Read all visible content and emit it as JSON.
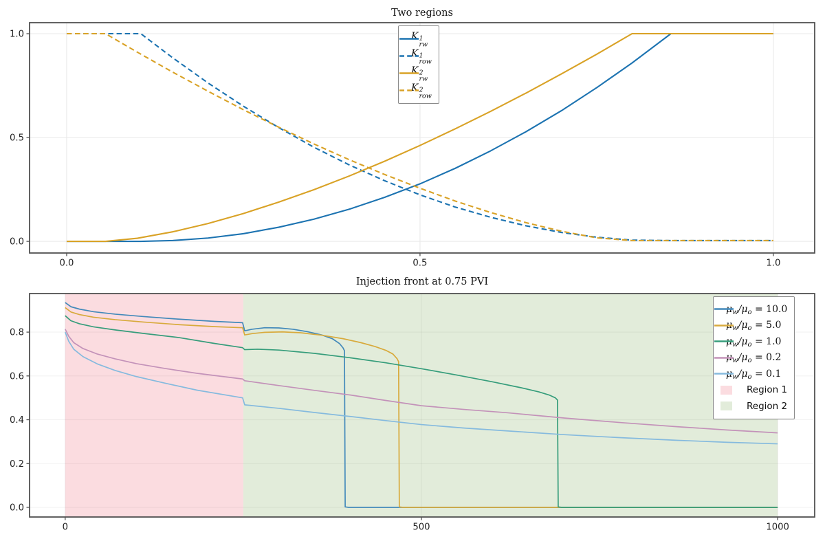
{
  "figure": {
    "background": "#ffffff"
  },
  "style": {
    "spine_color": "#515151",
    "tick_color": "#515151",
    "tick_label_color": "#222222",
    "title_color": "#151515",
    "grid_color_plain": "#e9e9e9",
    "grid_color_over_span": "rgba(0,0,0,0.05)",
    "legend_border": "#8a8a8a",
    "legend_bg": "#ffffff"
  },
  "chart_data": [
    {
      "type": "line",
      "title": "Two regions",
      "xlabel": "",
      "ylabel": "",
      "xlim": [
        -0.0525,
        1.0585
      ],
      "ylim": [
        -0.056,
        1.053
      ],
      "xticks": [
        0,
        0.5,
        1
      ],
      "xtick_labels": [
        "0.0",
        "0.5",
        "1.0"
      ],
      "yticks": [
        0,
        0.5,
        1
      ],
      "ytick_labels": [
        "0.0",
        "0.5",
        "1.0"
      ],
      "grid": true,
      "legend_position": "upper center",
      "series": [
        {
          "name": "Krw1",
          "label_text": "K_rw^1",
          "label_parts": [
            {
              "t": "K"
            },
            {
              "stack": [
                "1",
                "rw"
              ]
            }
          ],
          "color": "#1c73b1",
          "dash": "solid",
          "x": [
            0,
            0.105,
            0.15,
            0.2,
            0.25,
            0.3,
            0.35,
            0.4,
            0.45,
            0.5,
            0.55,
            0.6,
            0.65,
            0.7,
            0.75,
            0.8,
            0.855,
            1.0
          ],
          "y": [
            0,
            0,
            0.004,
            0.016,
            0.037,
            0.068,
            0.107,
            0.155,
            0.212,
            0.277,
            0.352,
            0.436,
            0.528,
            0.629,
            0.74,
            0.859,
            1,
            1
          ]
        },
        {
          "name": "Krow1",
          "label_text": "K_row^1",
          "label_parts": [
            {
              "t": "K"
            },
            {
              "stack": [
                "1",
                "row"
              ]
            }
          ],
          "color": "#1c73b1",
          "dash": "dashed",
          "x": [
            0,
            0.105,
            0.15,
            0.2,
            0.25,
            0.3,
            0.35,
            0.4,
            0.45,
            0.5,
            0.55,
            0.6,
            0.65,
            0.7,
            0.75,
            0.8,
            0.855,
            1.0
          ],
          "y": [
            1,
            1,
            0.884,
            0.763,
            0.651,
            0.548,
            0.453,
            0.368,
            0.292,
            0.224,
            0.165,
            0.116,
            0.075,
            0.043,
            0.02,
            0.006,
            0.004,
            0.004
          ]
        },
        {
          "name": "Krw2",
          "label_text": "K_rw^2",
          "label_parts": [
            {
              "t": "K"
            },
            {
              "stack": [
                "2",
                "rw"
              ]
            }
          ],
          "color": "#d9a226",
          "dash": "solid",
          "x": [
            0,
            0.055,
            0.1,
            0.15,
            0.2,
            0.25,
            0.3,
            0.35,
            0.4,
            0.45,
            0.5,
            0.55,
            0.6,
            0.65,
            0.7,
            0.75,
            0.8,
            1.0
          ],
          "y": [
            0,
            0,
            0.015,
            0.046,
            0.086,
            0.134,
            0.189,
            0.249,
            0.315,
            0.386,
            0.462,
            0.542,
            0.626,
            0.714,
            0.806,
            0.901,
            1,
            1
          ]
        },
        {
          "name": "Krow2",
          "label_text": "K_row^2",
          "label_parts": [
            {
              "t": "K"
            },
            {
              "stack": [
                "2",
                "row"
              ]
            }
          ],
          "color": "#d9a226",
          "dash": "dashed",
          "x": [
            0,
            0.055,
            0.1,
            0.15,
            0.2,
            0.25,
            0.3,
            0.35,
            0.4,
            0.45,
            0.5,
            0.55,
            0.6,
            0.65,
            0.7,
            0.75,
            0.8,
            1.0
          ],
          "y": [
            1,
            1,
            0.911,
            0.815,
            0.723,
            0.634,
            0.55,
            0.469,
            0.393,
            0.322,
            0.256,
            0.194,
            0.139,
            0.09,
            0.049,
            0.017,
            0.004,
            0.004
          ]
        }
      ]
    },
    {
      "type": "line",
      "title": "Injection front at 0.75 PVI",
      "xlabel": "",
      "ylabel": "",
      "xlim": [
        -50,
        1052
      ],
      "ylim": [
        -0.044,
        0.976
      ],
      "xticks": [
        0,
        500,
        1000
      ],
      "xtick_labels": [
        "0",
        "500",
        "1000"
      ],
      "yticks": [
        0,
        0.2,
        0.4,
        0.6,
        0.8
      ],
      "ytick_labels": [
        "0.0",
        "0.2",
        "0.4",
        "0.6",
        "0.8"
      ],
      "grid": true,
      "legend_position": "upper right",
      "regions": [
        {
          "label": "Region 1",
          "x0": 0,
          "x1": 250,
          "color": "#fbdce0"
        },
        {
          "label": "Region 2",
          "x0": 250,
          "x1": 1000,
          "color": "#e2ecda"
        }
      ],
      "series": [
        {
          "name": "mu10",
          "label_text": "mu_w/mu_o = 10.0",
          "label_parts": [
            {
              "t": "μ"
            },
            {
              "t": "w",
              "pos": "sub"
            },
            {
              "t": "/μ"
            },
            {
              "t": "o",
              "pos": "sub"
            },
            {
              "t": " = 10.0",
              "pos": "up"
            }
          ],
          "color": "#4289ba",
          "dash": "solid",
          "x": [
            0,
            8,
            20,
            40,
            70,
            110,
            160,
            210,
            249,
            252,
            262,
            280,
            300,
            320,
            340,
            360,
            375,
            385,
            390,
            392,
            393,
            398,
            1000
          ],
          "y": [
            0.935,
            0.916,
            0.905,
            0.893,
            0.882,
            0.871,
            0.859,
            0.849,
            0.843,
            0.806,
            0.813,
            0.82,
            0.819,
            0.813,
            0.802,
            0.787,
            0.77,
            0.748,
            0.728,
            0.715,
            0.002,
            0,
            0
          ]
        },
        {
          "name": "mu5",
          "label_text": "mu_w/mu_o = 5.0",
          "label_parts": [
            {
              "t": "μ"
            },
            {
              "t": "w",
              "pos": "sub"
            },
            {
              "t": "/μ"
            },
            {
              "t": "o",
              "pos": "sub"
            },
            {
              "t": " = 5.0",
              "pos": "up"
            }
          ],
          "color": "#d8aa3c",
          "dash": "solid",
          "x": [
            0,
            8,
            20,
            40,
            70,
            110,
            160,
            210,
            249,
            252,
            262,
            280,
            305,
            330,
            360,
            390,
            415,
            435,
            450,
            460,
            466,
            468,
            469,
            474,
            1000
          ],
          "y": [
            0.912,
            0.892,
            0.88,
            0.868,
            0.857,
            0.846,
            0.834,
            0.825,
            0.82,
            0.787,
            0.793,
            0.799,
            0.801,
            0.797,
            0.786,
            0.77,
            0.752,
            0.734,
            0.717,
            0.7,
            0.678,
            0.665,
            0.002,
            0,
            0
          ]
        },
        {
          "name": "mu1",
          "label_text": "mu_w/mu_o = 1.0",
          "label_parts": [
            {
              "t": "μ"
            },
            {
              "t": "w",
              "pos": "sub"
            },
            {
              "t": "/μ"
            },
            {
              "t": "o",
              "pos": "sub"
            },
            {
              "t": " = 1.0",
              "pos": "up"
            }
          ],
          "color": "#369d7b",
          "dash": "solid",
          "x": [
            0,
            8,
            20,
            40,
            70,
            110,
            160,
            210,
            249,
            252,
            270,
            300,
            350,
            400,
            450,
            500,
            550,
            600,
            640,
            665,
            680,
            688,
            691,
            692,
            697,
            1000
          ],
          "y": [
            0.875,
            0.852,
            0.838,
            0.824,
            0.81,
            0.794,
            0.775,
            0.748,
            0.729,
            0.72,
            0.722,
            0.718,
            0.703,
            0.683,
            0.66,
            0.633,
            0.604,
            0.573,
            0.546,
            0.527,
            0.512,
            0.5,
            0.49,
            0.002,
            0,
            0
          ]
        },
        {
          "name": "mu02",
          "label_text": "mu_w/mu_o = 0.2",
          "label_parts": [
            {
              "t": "μ"
            },
            {
              "t": "w",
              "pos": "sub"
            },
            {
              "t": "/μ"
            },
            {
              "t": "o",
              "pos": "sub"
            },
            {
              "t": " = 0.2",
              "pos": "up"
            }
          ],
          "color": "#c392b9",
          "dash": "solid",
          "x": [
            0,
            5,
            12,
            25,
            45,
            70,
            100,
            140,
            185,
            249,
            252,
            300,
            350,
            400,
            450,
            500,
            560,
            620,
            700,
            780,
            860,
            930,
            1000
          ],
          "y": [
            0.814,
            0.781,
            0.752,
            0.725,
            0.7,
            0.678,
            0.656,
            0.634,
            0.612,
            0.586,
            0.578,
            0.556,
            0.534,
            0.513,
            0.488,
            0.464,
            0.447,
            0.432,
            0.408,
            0.387,
            0.368,
            0.353,
            0.34
          ]
        },
        {
          "name": "mu01",
          "label_text": "mu_w/mu_o = 0.1",
          "label_parts": [
            {
              "t": "μ"
            },
            {
              "t": "w",
              "pos": "sub"
            },
            {
              "t": "/μ"
            },
            {
              "t": "o",
              "pos": "sub"
            },
            {
              "t": " = 0.1",
              "pos": "up"
            }
          ],
          "color": "#85bade",
          "dash": "solid",
          "x": [
            0,
            5,
            12,
            25,
            45,
            70,
            100,
            140,
            185,
            249,
            252,
            300,
            350,
            400,
            450,
            500,
            560,
            620,
            700,
            780,
            860,
            930,
            1000
          ],
          "y": [
            0.8,
            0.758,
            0.722,
            0.688,
            0.655,
            0.625,
            0.597,
            0.567,
            0.535,
            0.5,
            0.468,
            0.452,
            0.433,
            0.415,
            0.396,
            0.378,
            0.362,
            0.349,
            0.332,
            0.318,
            0.306,
            0.297,
            0.29
          ]
        }
      ]
    }
  ]
}
